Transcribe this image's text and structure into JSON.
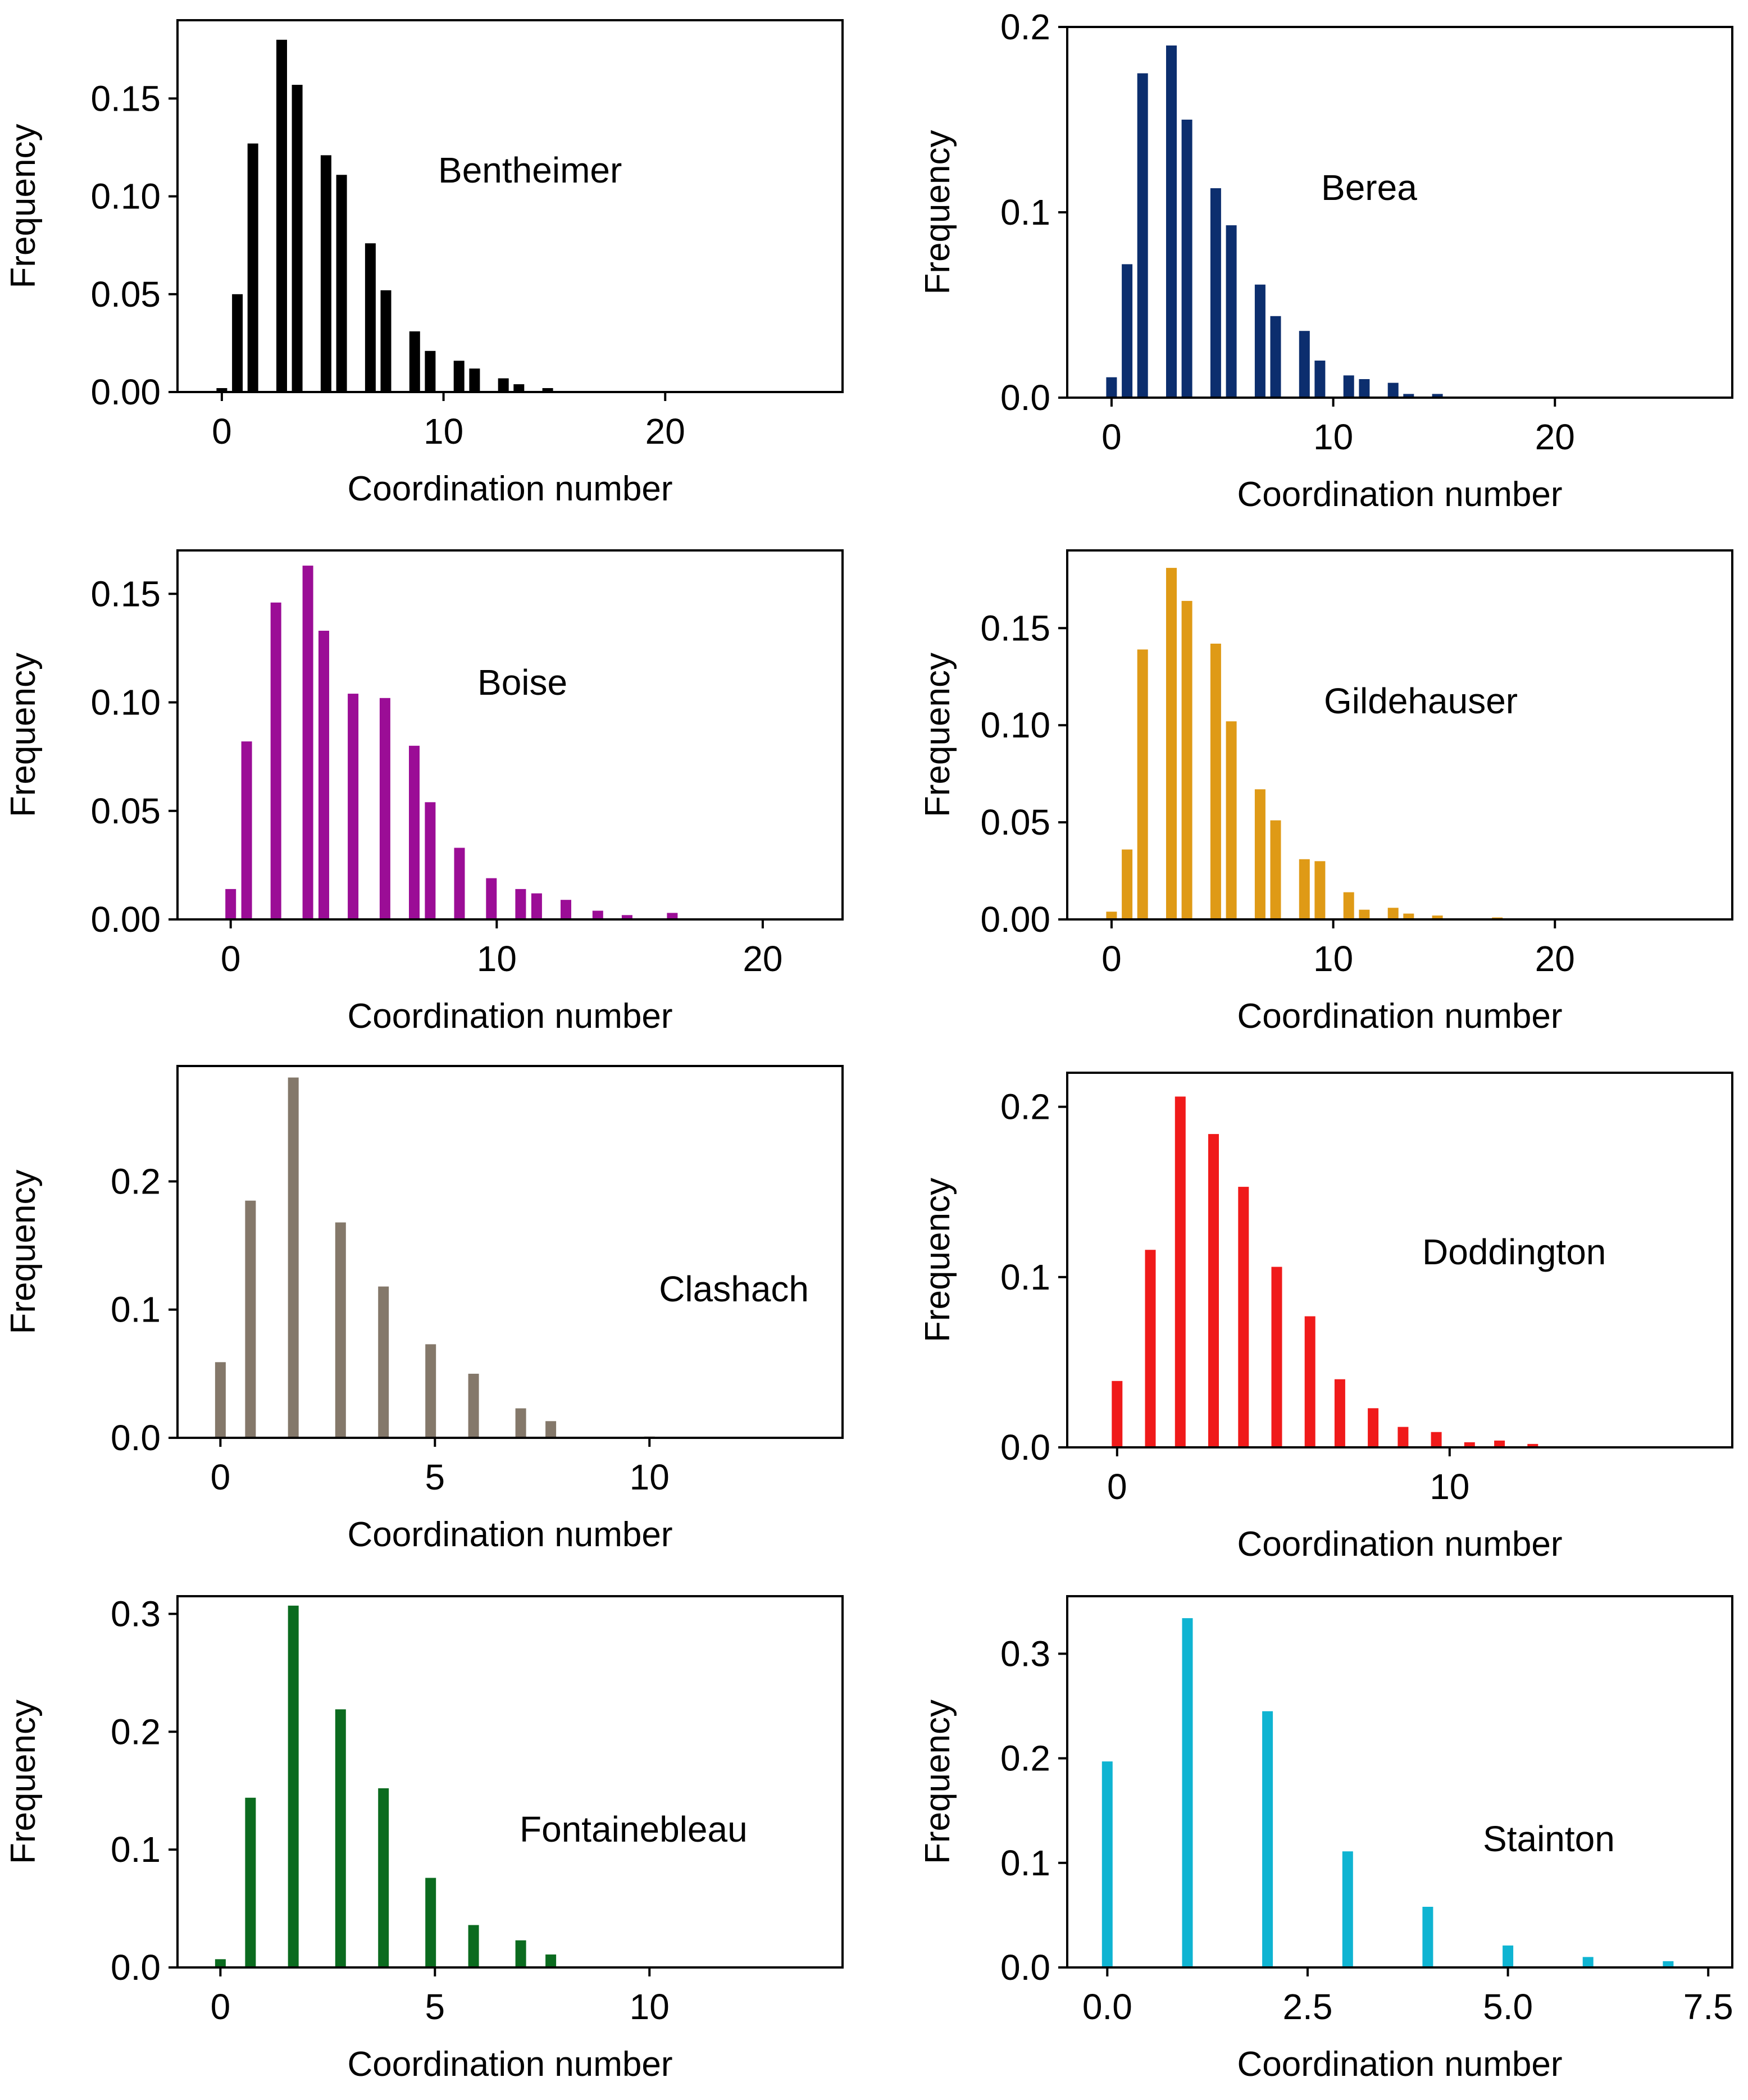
{
  "chart_data": [
    {
      "type": "bar",
      "title": "",
      "label": "Bentheimer",
      "color": "#000000",
      "xlabel": "Coordination number",
      "ylabel": "Frequency",
      "xlim": [
        -2,
        28
      ],
      "ylim": [
        0,
        0.19
      ],
      "xticks": [
        {
          "v": 0,
          "t": "0"
        },
        {
          "v": 10,
          "t": "10"
        },
        {
          "v": 20,
          "t": "20"
        }
      ],
      "yticks": [
        {
          "v": 0,
          "t": "0.00"
        },
        {
          "v": 0.05,
          "t": "0.05"
        },
        {
          "v": 0.1,
          "t": "0.10"
        },
        {
          "v": 0.15,
          "t": "0.15"
        }
      ],
      "x": [
        0,
        0.7,
        1.4,
        2.7,
        3.4,
        4.7,
        5.4,
        6.7,
        7.4,
        8.7,
        9.4,
        10.7,
        11.4,
        12.7,
        13.4,
        14.7
      ],
      "values": [
        0.002,
        0.05,
        0.127,
        0.18,
        0.157,
        0.121,
        0.111,
        0.076,
        0.052,
        0.031,
        0.021,
        0.016,
        0.012,
        0.007,
        0.004,
        0.002
      ]
    },
    {
      "type": "bar",
      "title": "",
      "label": "Berea",
      "color": "#0c2e6e",
      "xlabel": "Coordination number",
      "ylabel": "Frequency",
      "xlim": [
        -2,
        28
      ],
      "ylim": [
        0,
        0.2
      ],
      "xticks": [
        {
          "v": 0,
          "t": "0"
        },
        {
          "v": 10,
          "t": "10"
        },
        {
          "v": 20,
          "t": "20"
        }
      ],
      "yticks": [
        {
          "v": 0,
          "t": "0.0"
        },
        {
          "v": 0.1,
          "t": "0.1"
        },
        {
          "v": 0.2,
          "t": "0.2"
        }
      ],
      "x": [
        0,
        0.7,
        1.4,
        2.7,
        3.4,
        4.7,
        5.4,
        6.7,
        7.4,
        8.7,
        9.4,
        10.7,
        11.4,
        12.7,
        13.4,
        14.7
      ],
      "values": [
        0.011,
        0.072,
        0.175,
        0.19,
        0.15,
        0.113,
        0.093,
        0.061,
        0.044,
        0.036,
        0.02,
        0.012,
        0.01,
        0.008,
        0.002,
        0.002
      ]
    },
    {
      "type": "bar",
      "title": "",
      "label": "Boise",
      "color": "#9b0d96",
      "xlabel": "Coordination number",
      "ylabel": "Frequency",
      "xlim": [
        -2,
        23
      ],
      "ylim": [
        0,
        0.17
      ],
      "xticks": [
        {
          "v": 0,
          "t": "0"
        },
        {
          "v": 10,
          "t": "10"
        },
        {
          "v": 20,
          "t": "20"
        }
      ],
      "yticks": [
        {
          "v": 0,
          "t": "0.00"
        },
        {
          "v": 0.05,
          "t": "0.05"
        },
        {
          "v": 0.1,
          "t": "0.10"
        },
        {
          "v": 0.15,
          "t": "0.15"
        }
      ],
      "x": [
        0,
        0.6,
        1.7,
        2.9,
        3.5,
        4.6,
        5.8,
        6.9,
        7.5,
        8.6,
        9.8,
        10.9,
        11.5,
        12.6,
        13.8,
        14.9,
        16.6
      ],
      "values": [
        0.014,
        0.082,
        0.146,
        0.163,
        0.133,
        0.104,
        0.102,
        0.08,
        0.054,
        0.033,
        0.019,
        0.014,
        0.012,
        0.009,
        0.004,
        0.002,
        0.003
      ]
    },
    {
      "type": "bar",
      "title": "",
      "label": "Gildehauser",
      "color": "#df9a16",
      "xlabel": "Coordination number",
      "ylabel": "Frequency",
      "xlim": [
        -2,
        28
      ],
      "ylim": [
        0,
        0.19
      ],
      "xticks": [
        {
          "v": 0,
          "t": "0"
        },
        {
          "v": 10,
          "t": "10"
        },
        {
          "v": 20,
          "t": "20"
        }
      ],
      "yticks": [
        {
          "v": 0,
          "t": "0.00"
        },
        {
          "v": 0.05,
          "t": "0.05"
        },
        {
          "v": 0.1,
          "t": "0.10"
        },
        {
          "v": 0.15,
          "t": "0.15"
        }
      ],
      "x": [
        0,
        0.7,
        1.4,
        2.7,
        3.4,
        4.7,
        5.4,
        6.7,
        7.4,
        8.7,
        9.4,
        10.7,
        11.4,
        12.7,
        13.4,
        14.7,
        17.4
      ],
      "values": [
        0.004,
        0.036,
        0.139,
        0.181,
        0.164,
        0.142,
        0.102,
        0.067,
        0.051,
        0.031,
        0.03,
        0.014,
        0.005,
        0.006,
        0.003,
        0.002,
        0.001
      ]
    },
    {
      "type": "bar",
      "title": "",
      "label": "Clashach",
      "color": "#84786a",
      "xlabel": "Coordination number",
      "ylabel": "Frequency",
      "xlim": [
        -1,
        14.5
      ],
      "ylim": [
        0,
        0.29
      ],
      "xticks": [
        {
          "v": 0,
          "t": "0"
        },
        {
          "v": 5,
          "t": "5"
        },
        {
          "v": 10,
          "t": "10"
        }
      ],
      "yticks": [
        {
          "v": 0,
          "t": "0.0"
        },
        {
          "v": 0.1,
          "t": "0.1"
        },
        {
          "v": 0.2,
          "t": "0.2"
        }
      ],
      "x": [
        0,
        0.7,
        1.7,
        2.8,
        3.8,
        4.9,
        5.9,
        7.0,
        7.7,
        10.0
      ],
      "values": [
        0.059,
        0.185,
        0.281,
        0.168,
        0.118,
        0.073,
        0.05,
        0.023,
        0.013,
        0.001
      ]
    },
    {
      "type": "bar",
      "title": "",
      "label": "Doddington",
      "color": "#f01a1a",
      "xlabel": "Coordination number",
      "ylabel": "Frequency",
      "xlim": [
        -1.5,
        18.5
      ],
      "ylim": [
        0,
        0.22
      ],
      "xticks": [
        {
          "v": 0,
          "t": "0"
        },
        {
          "v": 10,
          "t": "10"
        }
      ],
      "yticks": [
        {
          "v": 0,
          "t": "0.0"
        },
        {
          "v": 0.1,
          "t": "0.1"
        },
        {
          "v": 0.2,
          "t": "0.2"
        }
      ],
      "x": [
        0,
        1.0,
        1.9,
        2.9,
        3.8,
        4.8,
        5.8,
        6.7,
        7.7,
        8.6,
        9.6,
        10.6,
        11.5,
        12.5
      ],
      "values": [
        0.039,
        0.116,
        0.206,
        0.184,
        0.153,
        0.106,
        0.077,
        0.04,
        0.023,
        0.012,
        0.009,
        0.003,
        0.004,
        0.002
      ]
    },
    {
      "type": "bar",
      "title": "",
      "label": "Fontainebleau",
      "color": "#0b6b1f",
      "xlabel": "Coordination number",
      "ylabel": "Frequency",
      "xlim": [
        -1,
        14.5
      ],
      "ylim": [
        0,
        0.315
      ],
      "xticks": [
        {
          "v": 0,
          "t": "0"
        },
        {
          "v": 5,
          "t": "5"
        },
        {
          "v": 10,
          "t": "10"
        }
      ],
      "yticks": [
        {
          "v": 0,
          "t": "0.0"
        },
        {
          "v": 0.1,
          "t": "0.1"
        },
        {
          "v": 0.2,
          "t": "0.2"
        },
        {
          "v": 0.3,
          "t": "0.3"
        }
      ],
      "x": [
        0,
        0.7,
        1.7,
        2.8,
        3.8,
        4.9,
        5.9,
        7.0,
        7.7
      ],
      "values": [
        0.007,
        0.144,
        0.307,
        0.219,
        0.152,
        0.076,
        0.036,
        0.023,
        0.011
      ]
    },
    {
      "type": "bar",
      "title": "",
      "label": "Stainton",
      "color": "#0fb4d2",
      "xlabel": "Coordination number",
      "ylabel": "Frequency",
      "xlim": [
        -0.5,
        7.8
      ],
      "ylim": [
        0,
        0.355
      ],
      "xticks": [
        {
          "v": 0,
          "t": "0.0"
        },
        {
          "v": 2.5,
          "t": "2.5"
        },
        {
          "v": 5,
          "t": "5.0"
        },
        {
          "v": 7.5,
          "t": "7.5"
        }
      ],
      "yticks": [
        {
          "v": 0,
          "t": "0.0"
        },
        {
          "v": 0.1,
          "t": "0.1"
        },
        {
          "v": 0.2,
          "t": "0.2"
        },
        {
          "v": 0.3,
          "t": "0.3"
        }
      ],
      "x": [
        0,
        1,
        2,
        3,
        4,
        5,
        6,
        7
      ],
      "values": [
        0.197,
        0.334,
        0.245,
        0.111,
        0.058,
        0.021,
        0.01,
        0.006
      ]
    }
  ]
}
